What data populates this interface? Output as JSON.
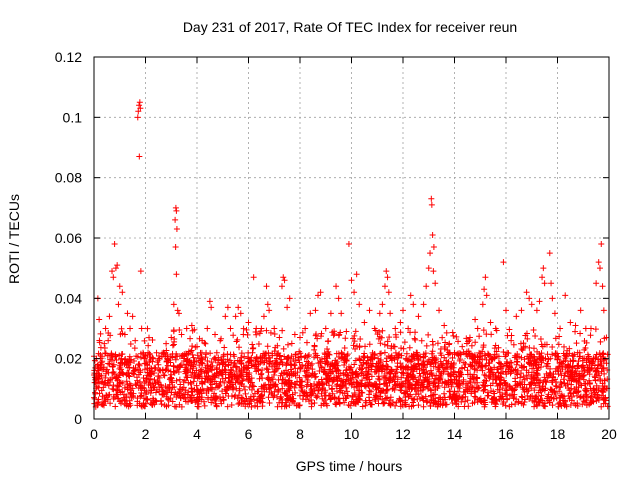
{
  "chart_data": {
    "type": "scatter",
    "title": "Day 231 of 2017, Rate Of TEC Index for receiver reun",
    "xlabel": "GPS time / hours",
    "ylabel": "ROTI / TECUs",
    "xlim": [
      0,
      20
    ],
    "ylim": [
      0,
      0.12
    ],
    "xticks": [
      0,
      2,
      4,
      6,
      8,
      10,
      12,
      14,
      16,
      18,
      20
    ],
    "xtick_labels": [
      "0",
      "2",
      "4",
      "6",
      "8",
      "10",
      "12",
      "14",
      "16",
      "18",
      "20"
    ],
    "yticks": [
      0,
      0.02,
      0.04,
      0.06,
      0.08,
      0.1,
      0.12
    ],
    "ytick_labels": [
      "0",
      "0.02",
      "0.04",
      "0.06",
      "0.08",
      "0.1",
      "0.12"
    ],
    "grid": true,
    "marker": "+",
    "color": "#ff0000",
    "series": [
      {
        "name": "ROTI",
        "points": [
          [
            0.05,
            0.013
          ],
          [
            0.1,
            0.02
          ],
          [
            0.15,
            0.04
          ],
          [
            0.2,
            0.033
          ],
          [
            0.3,
            0.018
          ],
          [
            0.4,
            0.025
          ],
          [
            0.45,
            0.03
          ],
          [
            0.55,
            0.026
          ],
          [
            0.6,
            0.034
          ],
          [
            0.7,
            0.049
          ],
          [
            0.75,
            0.047
          ],
          [
            0.8,
            0.058
          ],
          [
            0.85,
            0.05
          ],
          [
            0.9,
            0.051
          ],
          [
            0.95,
            0.038
          ],
          [
            1.0,
            0.044
          ],
          [
            1.1,
            0.042
          ],
          [
            1.2,
            0.028
          ],
          [
            1.3,
            0.035
          ],
          [
            1.4,
            0.03
          ],
          [
            1.5,
            0.034
          ],
          [
            1.6,
            0.026
          ],
          [
            1.7,
            0.1
          ],
          [
            1.72,
            0.102
          ],
          [
            1.75,
            0.104
          ],
          [
            1.78,
            0.105
          ],
          [
            1.8,
            0.103
          ],
          [
            1.76,
            0.087
          ],
          [
            1.82,
            0.049
          ],
          [
            1.85,
            0.03
          ],
          [
            1.95,
            0.02
          ],
          [
            2.1,
            0.022
          ],
          [
            2.3,
            0.02
          ],
          [
            2.5,
            0.018
          ],
          [
            2.7,
            0.022
          ],
          [
            2.8,
            0.025
          ],
          [
            3.0,
            0.027
          ],
          [
            3.1,
            0.038
          ],
          [
            3.15,
            0.066
          ],
          [
            3.18,
            0.07
          ],
          [
            3.2,
            0.069
          ],
          [
            3.22,
            0.063
          ],
          [
            3.17,
            0.057
          ],
          [
            3.2,
            0.048
          ],
          [
            3.25,
            0.036
          ],
          [
            3.3,
            0.035
          ],
          [
            3.4,
            0.028
          ],
          [
            3.6,
            0.03
          ],
          [
            3.8,
            0.031
          ],
          [
            4.0,
            0.024
          ],
          [
            4.2,
            0.026
          ],
          [
            4.4,
            0.03
          ],
          [
            4.5,
            0.039
          ],
          [
            4.55,
            0.037
          ],
          [
            4.7,
            0.028
          ],
          [
            4.9,
            0.026
          ],
          [
            5.1,
            0.034
          ],
          [
            5.2,
            0.037
          ],
          [
            5.3,
            0.03
          ],
          [
            5.5,
            0.034
          ],
          [
            5.6,
            0.037
          ],
          [
            5.7,
            0.035
          ],
          [
            5.8,
            0.028
          ],
          [
            6.0,
            0.032
          ],
          [
            6.2,
            0.047
          ],
          [
            6.3,
            0.03
          ],
          [
            6.5,
            0.03
          ],
          [
            6.6,
            0.034
          ],
          [
            6.7,
            0.044
          ],
          [
            6.75,
            0.038
          ],
          [
            6.8,
            0.036
          ],
          [
            7.0,
            0.03
          ],
          [
            7.2,
            0.027
          ],
          [
            7.3,
            0.044
          ],
          [
            7.35,
            0.047
          ],
          [
            7.4,
            0.046
          ],
          [
            7.5,
            0.037
          ],
          [
            7.6,
            0.04
          ],
          [
            7.8,
            0.028
          ],
          [
            8.0,
            0.027
          ],
          [
            8.2,
            0.03
          ],
          [
            8.4,
            0.035
          ],
          [
            8.6,
            0.036
          ],
          [
            8.7,
            0.041
          ],
          [
            8.8,
            0.042
          ],
          [
            9.0,
            0.03
          ],
          [
            9.2,
            0.035
          ],
          [
            9.4,
            0.044
          ],
          [
            9.5,
            0.04
          ],
          [
            9.6,
            0.035
          ],
          [
            9.8,
            0.029
          ],
          [
            9.9,
            0.058
          ],
          [
            10.0,
            0.046
          ],
          [
            10.1,
            0.042
          ],
          [
            10.2,
            0.048
          ],
          [
            10.3,
            0.038
          ],
          [
            10.5,
            0.032
          ],
          [
            10.7,
            0.036
          ],
          [
            10.9,
            0.03
          ],
          [
            11.1,
            0.035
          ],
          [
            11.2,
            0.038
          ],
          [
            11.3,
            0.044
          ],
          [
            11.35,
            0.049
          ],
          [
            11.4,
            0.047
          ],
          [
            11.45,
            0.042
          ],
          [
            11.5,
            0.035
          ],
          [
            11.7,
            0.03
          ],
          [
            11.9,
            0.032
          ],
          [
            12.0,
            0.036
          ],
          [
            12.2,
            0.03
          ],
          [
            12.3,
            0.041
          ],
          [
            12.4,
            0.038
          ],
          [
            12.6,
            0.034
          ],
          [
            12.8,
            0.038
          ],
          [
            12.9,
            0.044
          ],
          [
            13.0,
            0.05
          ],
          [
            13.05,
            0.055
          ],
          [
            13.1,
            0.073
          ],
          [
            13.12,
            0.071
          ],
          [
            13.15,
            0.061
          ],
          [
            13.2,
            0.057
          ],
          [
            13.18,
            0.049
          ],
          [
            13.25,
            0.045
          ],
          [
            13.4,
            0.036
          ],
          [
            13.6,
            0.031
          ],
          [
            13.8,
            0.025
          ],
          [
            14.0,
            0.022
          ],
          [
            14.3,
            0.024
          ],
          [
            14.6,
            0.027
          ],
          [
            14.8,
            0.033
          ],
          [
            14.9,
            0.03
          ],
          [
            15.1,
            0.038
          ],
          [
            15.15,
            0.043
          ],
          [
            15.2,
            0.047
          ],
          [
            15.25,
            0.041
          ],
          [
            15.4,
            0.032
          ],
          [
            15.6,
            0.03
          ],
          [
            15.9,
            0.052
          ],
          [
            16.0,
            0.036
          ],
          [
            16.2,
            0.026
          ],
          [
            16.4,
            0.034
          ],
          [
            16.6,
            0.036
          ],
          [
            16.8,
            0.042
          ],
          [
            16.9,
            0.04
          ],
          [
            17.0,
            0.038
          ],
          [
            17.2,
            0.036
          ],
          [
            17.3,
            0.039
          ],
          [
            17.4,
            0.047
          ],
          [
            17.45,
            0.05
          ],
          [
            17.5,
            0.045
          ],
          [
            17.7,
            0.055
          ],
          [
            17.75,
            0.045
          ],
          [
            17.8,
            0.04
          ],
          [
            17.9,
            0.035
          ],
          [
            18.1,
            0.03
          ],
          [
            18.3,
            0.041
          ],
          [
            18.5,
            0.032
          ],
          [
            18.7,
            0.031
          ],
          [
            18.9,
            0.036
          ],
          [
            19.1,
            0.03
          ],
          [
            19.3,
            0.03
          ],
          [
            19.5,
            0.045
          ],
          [
            19.6,
            0.052
          ],
          [
            19.65,
            0.05
          ],
          [
            19.7,
            0.058
          ],
          [
            19.75,
            0.044
          ],
          [
            19.8,
            0.036
          ],
          [
            19.9,
            0.027
          ]
        ],
        "dense_band": {
          "x_range": [
            0,
            19.95
          ],
          "y_range": [
            0.004,
            0.022
          ],
          "spread_upper": 0.028,
          "count": 3000
        }
      }
    ]
  }
}
